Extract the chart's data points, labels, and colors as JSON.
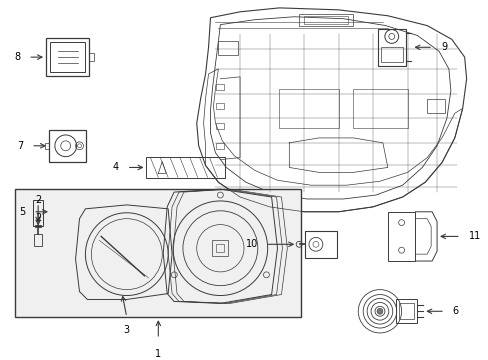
{
  "bg_color": "#ffffff",
  "line_color": "#3a3a3a",
  "text_color": "#000000",
  "fig_width": 4.89,
  "fig_height": 3.6,
  "dpi": 100,
  "lw": 0.7,
  "font_size": 7.0
}
